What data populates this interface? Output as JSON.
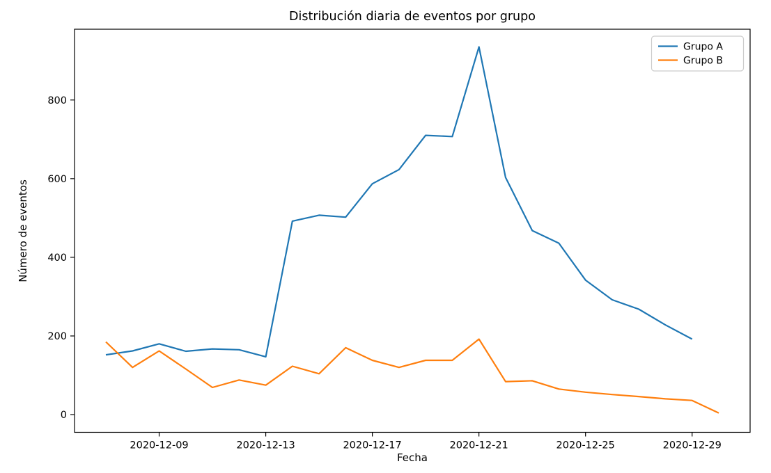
{
  "chart_data": {
    "type": "line",
    "title": "Distribución diaria de eventos por grupo",
    "xlabel": "Fecha",
    "ylabel": "Número de eventos",
    "x": [
      "2020-12-07",
      "2020-12-08",
      "2020-12-09",
      "2020-12-10",
      "2020-12-11",
      "2020-12-12",
      "2020-12-13",
      "2020-12-14",
      "2020-12-15",
      "2020-12-16",
      "2020-12-17",
      "2020-12-18",
      "2020-12-19",
      "2020-12-20",
      "2020-12-21",
      "2020-12-22",
      "2020-12-23",
      "2020-12-24",
      "2020-12-25",
      "2020-12-26",
      "2020-12-27",
      "2020-12-28",
      "2020-12-29",
      "2020-12-30"
    ],
    "series": [
      {
        "name": "Grupo A",
        "color": "#1f77b4",
        "values": [
          152,
          162,
          180,
          161,
          167,
          165,
          147,
          492,
          507,
          502,
          587,
          623,
          710,
          707,
          935,
          603,
          468,
          436,
          342,
          292,
          268,
          228,
          192,
          null
        ]
      },
      {
        "name": "Grupo B",
        "color": "#ff7f0e",
        "values": [
          185,
          120,
          162,
          116,
          69,
          88,
          75,
          123,
          104,
          170,
          138,
          120,
          138,
          138,
          192,
          84,
          86,
          65,
          57,
          51,
          46,
          40,
          36,
          4
        ]
      }
    ],
    "x_tick_labels": [
      "2020-12-09",
      "2020-12-13",
      "2020-12-17",
      "2020-12-21",
      "2020-12-25",
      "2020-12-29"
    ],
    "y_ticks": [
      0,
      200,
      400,
      600,
      800
    ],
    "ylim": [
      -45,
      980
    ],
    "grid": false,
    "legend_position": "upper right"
  }
}
